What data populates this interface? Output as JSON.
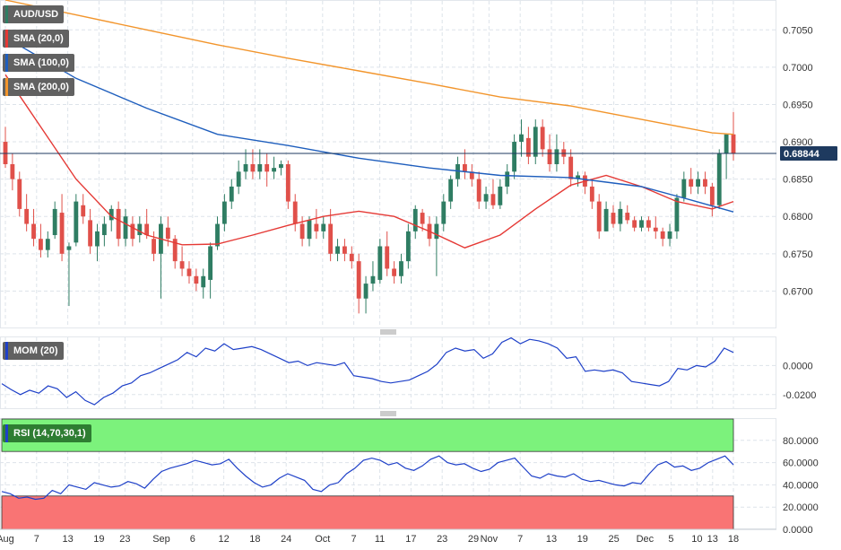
{
  "chart_data": {
    "type": "candlestick",
    "symbol": "AUD/USD",
    "x_tick_labels": [
      "Aug",
      "7",
      "13",
      "19",
      "23",
      "Sep",
      "6",
      "12",
      "18",
      "24",
      "Oct",
      "7",
      "11",
      "17",
      "23",
      "29",
      "Nov",
      "7",
      "13",
      "19",
      "25",
      "Dec",
      "5",
      "10",
      "13",
      "18"
    ],
    "price_axis": {
      "ylim": [
        0.665,
        0.709
      ],
      "ticks": [
        "0.7050",
        "0.7000",
        "0.6950",
        "0.6900",
        "0.6850",
        "0.6800",
        "0.6750",
        "0.6700"
      ]
    },
    "last_price": "0.68844",
    "candles": [
      [
        0.69,
        0.692,
        0.6865,
        0.687
      ],
      [
        0.687,
        0.6885,
        0.6835,
        0.685
      ],
      [
        0.685,
        0.686,
        0.68,
        0.681
      ],
      [
        0.681,
        0.683,
        0.678,
        0.679
      ],
      [
        0.679,
        0.681,
        0.676,
        0.677
      ],
      [
        0.677,
        0.679,
        0.6745,
        0.6755
      ],
      [
        0.6755,
        0.678,
        0.6745,
        0.677
      ],
      [
        0.6775,
        0.682,
        0.677,
        0.681
      ],
      [
        0.6805,
        0.683,
        0.674,
        0.675
      ],
      [
        0.6755,
        0.6765,
        0.668,
        0.676
      ],
      [
        0.6765,
        0.683,
        0.676,
        0.682
      ],
      [
        0.6815,
        0.683,
        0.679,
        0.68
      ],
      [
        0.6795,
        0.681,
        0.675,
        0.676
      ],
      [
        0.676,
        0.679,
        0.674,
        0.678
      ],
      [
        0.6775,
        0.68,
        0.676,
        0.679
      ],
      [
        0.6795,
        0.6815,
        0.678,
        0.681
      ],
      [
        0.681,
        0.682,
        0.676,
        0.677
      ],
      [
        0.677,
        0.681,
        0.676,
        0.68
      ],
      [
        0.679,
        0.68,
        0.676,
        0.677
      ],
      [
        0.6775,
        0.68,
        0.6765,
        0.679
      ],
      [
        0.679,
        0.681,
        0.677,
        0.6775
      ],
      [
        0.677,
        0.678,
        0.674,
        0.675
      ],
      [
        0.675,
        0.68,
        0.669,
        0.679
      ],
      [
        0.6785,
        0.68,
        0.676,
        0.677
      ],
      [
        0.677,
        0.6775,
        0.673,
        0.674
      ],
      [
        0.674,
        0.676,
        0.672,
        0.673
      ],
      [
        0.673,
        0.674,
        0.671,
        0.672
      ],
      [
        0.672,
        0.673,
        0.67,
        0.671
      ],
      [
        0.6705,
        0.673,
        0.669,
        0.672
      ],
      [
        0.6715,
        0.6765,
        0.669,
        0.676
      ],
      [
        0.676,
        0.68,
        0.6755,
        0.679
      ],
      [
        0.679,
        0.683,
        0.678,
        0.682
      ],
      [
        0.682,
        0.685,
        0.681,
        0.684
      ],
      [
        0.684,
        0.6875,
        0.683,
        0.686
      ],
      [
        0.686,
        0.689,
        0.685,
        0.687
      ],
      [
        0.687,
        0.689,
        0.685,
        0.686
      ],
      [
        0.686,
        0.689,
        0.685,
        0.687
      ],
      [
        0.687,
        0.6885,
        0.684,
        0.686
      ],
      [
        0.686,
        0.688,
        0.685,
        0.6865
      ],
      [
        0.6865,
        0.6875,
        0.6855,
        0.687
      ],
      [
        0.687,
        0.6875,
        0.681,
        0.682
      ],
      [
        0.682,
        0.683,
        0.678,
        0.679
      ],
      [
        0.679,
        0.68,
        0.676,
        0.677
      ],
      [
        0.677,
        0.68,
        0.676,
        0.6795
      ],
      [
        0.679,
        0.681,
        0.677,
        0.678
      ],
      [
        0.678,
        0.68,
        0.677,
        0.679
      ],
      [
        0.679,
        0.681,
        0.674,
        0.675
      ],
      [
        0.675,
        0.677,
        0.674,
        0.676
      ],
      [
        0.676,
        0.677,
        0.674,
        0.675
      ],
      [
        0.675,
        0.676,
        0.673,
        0.674
      ],
      [
        0.674,
        0.675,
        0.667,
        0.669
      ],
      [
        0.669,
        0.672,
        0.667,
        0.671
      ],
      [
        0.671,
        0.674,
        0.67,
        0.672
      ],
      [
        0.6715,
        0.677,
        0.671,
        0.676
      ],
      [
        0.676,
        0.678,
        0.672,
        0.673
      ],
      [
        0.673,
        0.674,
        0.671,
        0.672
      ],
      [
        0.672,
        0.675,
        0.671,
        0.674
      ],
      [
        0.674,
        0.679,
        0.673,
        0.678
      ],
      [
        0.678,
        0.6815,
        0.677,
        0.681
      ],
      [
        0.6805,
        0.681,
        0.678,
        0.679
      ],
      [
        0.679,
        0.68,
        0.676,
        0.677
      ],
      [
        0.677,
        0.68,
        0.672,
        0.679
      ],
      [
        0.679,
        0.683,
        0.678,
        0.682
      ],
      [
        0.682,
        0.6855,
        0.681,
        0.685
      ],
      [
        0.685,
        0.688,
        0.684,
        0.687
      ],
      [
        0.687,
        0.689,
        0.685,
        0.686
      ],
      [
        0.686,
        0.687,
        0.684,
        0.685
      ],
      [
        0.685,
        0.686,
        0.681,
        0.682
      ],
      [
        0.682,
        0.684,
        0.681,
        0.683
      ],
      [
        0.683,
        0.685,
        0.681,
        0.6815
      ],
      [
        0.6815,
        0.685,
        0.681,
        0.684
      ],
      [
        0.684,
        0.687,
        0.683,
        0.686
      ],
      [
        0.686,
        0.691,
        0.685,
        0.69
      ],
      [
        0.69,
        0.693,
        0.688,
        0.691
      ],
      [
        0.6905,
        0.692,
        0.687,
        0.688
      ],
      [
        0.688,
        0.693,
        0.687,
        0.692
      ],
      [
        0.692,
        0.693,
        0.688,
        0.689
      ],
      [
        0.689,
        0.691,
        0.686,
        0.687
      ],
      [
        0.687,
        0.691,
        0.686,
        0.689
      ],
      [
        0.689,
        0.69,
        0.687,
        0.688
      ],
      [
        0.688,
        0.689,
        0.684,
        0.685
      ],
      [
        0.685,
        0.686,
        0.684,
        0.6855
      ],
      [
        0.6855,
        0.686,
        0.683,
        0.684
      ],
      [
        0.684,
        0.685,
        0.681,
        0.682
      ],
      [
        0.682,
        0.683,
        0.677,
        0.678
      ],
      [
        0.678,
        0.682,
        0.678,
        0.681
      ],
      [
        0.6805,
        0.6815,
        0.6785,
        0.679
      ],
      [
        0.679,
        0.682,
        0.678,
        0.681
      ],
      [
        0.6805,
        0.6815,
        0.679,
        0.6795
      ],
      [
        0.6795,
        0.68,
        0.678,
        0.6785
      ],
      [
        0.6785,
        0.68,
        0.678,
        0.6795
      ],
      [
        0.6795,
        0.68,
        0.678,
        0.6785
      ],
      [
        0.6785,
        0.68,
        0.677,
        0.678
      ],
      [
        0.678,
        0.6785,
        0.676,
        0.677
      ],
      [
        0.677,
        0.679,
        0.676,
        0.678
      ],
      [
        0.678,
        0.683,
        0.677,
        0.6825
      ],
      [
        0.6825,
        0.686,
        0.682,
        0.685
      ],
      [
        0.685,
        0.6865,
        0.683,
        0.684
      ],
      [
        0.684,
        0.686,
        0.683,
        0.685
      ],
      [
        0.685,
        0.686,
        0.683,
        0.684
      ],
      [
        0.684,
        0.6845,
        0.68,
        0.6815
      ],
      [
        0.6815,
        0.689,
        0.681,
        0.6885
      ],
      [
        0.6885,
        0.691,
        0.685,
        0.691
      ],
      [
        0.691,
        0.694,
        0.6875,
        0.6884
      ]
    ],
    "sma": [
      {
        "name": "SMA (20,0)",
        "color": "#e53935",
        "points": [
          [
            0,
            0.699
          ],
          [
            5,
            0.692
          ],
          [
            10,
            0.685
          ],
          [
            15,
            0.68
          ],
          [
            20,
            0.6775
          ],
          [
            25,
            0.6762
          ],
          [
            30,
            0.6763
          ],
          [
            35,
            0.6775
          ],
          [
            40,
            0.6788
          ],
          [
            45,
            0.68
          ],
          [
            50,
            0.6807
          ],
          [
            55,
            0.68
          ],
          [
            60,
            0.678
          ],
          [
            65,
            0.6758
          ],
          [
            70,
            0.6775
          ],
          [
            75,
            0.681
          ],
          [
            80,
            0.6842
          ],
          [
            85,
            0.6855
          ],
          [
            90,
            0.684
          ],
          [
            95,
            0.682
          ],
          [
            100,
            0.681
          ],
          [
            103,
            0.682
          ]
        ]
      },
      {
        "name": "SMA (100,0)",
        "color": "#1e5ebd",
        "points": [
          [
            0,
            0.704
          ],
          [
            10,
            0.6985
          ],
          [
            20,
            0.6945
          ],
          [
            30,
            0.691
          ],
          [
            40,
            0.6895
          ],
          [
            50,
            0.6878
          ],
          [
            60,
            0.6865
          ],
          [
            70,
            0.6855
          ],
          [
            80,
            0.6852
          ],
          [
            90,
            0.684
          ],
          [
            97,
            0.6822
          ],
          [
            103,
            0.6806
          ]
        ]
      },
      {
        "name": "SMA (200,0)",
        "color": "#f2952c",
        "points": [
          [
            0,
            0.709
          ],
          [
            10,
            0.707
          ],
          [
            20,
            0.705
          ],
          [
            30,
            0.703
          ],
          [
            40,
            0.7012
          ],
          [
            50,
            0.6995
          ],
          [
            60,
            0.6978
          ],
          [
            70,
            0.696
          ],
          [
            80,
            0.6948
          ],
          [
            90,
            0.693
          ],
          [
            100,
            0.6912
          ],
          [
            103,
            0.691
          ]
        ]
      }
    ],
    "mom": {
      "name": "MOM (20)",
      "color": "#1e40c8",
      "ylim": [
        -0.03,
        0.02
      ],
      "ticks": [
        "0.0000",
        "-0.0200"
      ],
      "values": [
        -0.0125,
        -0.0165,
        -0.02,
        -0.017,
        -0.019,
        -0.014,
        -0.016,
        -0.022,
        -0.018,
        -0.024,
        -0.027,
        -0.022,
        -0.019,
        -0.014,
        -0.012,
        -0.007,
        -0.005,
        -0.002,
        0.001,
        0.004,
        0.009,
        0.006,
        0.012,
        0.01,
        0.015,
        0.011,
        0.012,
        0.013,
        0.011,
        0.008,
        0.005,
        0.002,
        0.003,
        0.0,
        0.002,
        0.001,
        0.0,
        0.002,
        -0.007,
        -0.008,
        -0.009,
        -0.011,
        -0.012,
        -0.011,
        -0.01,
        -0.007,
        -0.004,
        0.001,
        0.009,
        0.012,
        0.01,
        0.011,
        0.005,
        0.008,
        0.016,
        0.019,
        0.015,
        0.018,
        0.017,
        0.015,
        0.012,
        0.005,
        0.006,
        -0.004,
        -0.003,
        -0.004,
        -0.003,
        -0.005,
        -0.011,
        -0.012,
        -0.013,
        -0.014,
        -0.011,
        -0.002,
        -0.003,
        0.0,
        -0.001,
        0.003,
        0.012,
        0.009
      ],
      "label_sample_note": ""
    },
    "rsi": {
      "name": "RSI (14,70,30,1)",
      "color": "#1e40c8",
      "ylim": [
        0,
        100
      ],
      "overbought": 70,
      "oversold": 30,
      "ticks": [
        "80.0000",
        "60.0000",
        "40.0000",
        "20.0000",
        "0.0000"
      ],
      "values": [
        34,
        32,
        28,
        29,
        27,
        28,
        35,
        32,
        40,
        38,
        36,
        42,
        40,
        38,
        39,
        43,
        41,
        37,
        45,
        52,
        55,
        57,
        59,
        62,
        60,
        58,
        59,
        63,
        55,
        48,
        42,
        38,
        40,
        46,
        50,
        47,
        44,
        36,
        34,
        40,
        42,
        50,
        55,
        62,
        64,
        62,
        58,
        60,
        55,
        53,
        57,
        63,
        66,
        60,
        58,
        59,
        55,
        52,
        54,
        60,
        62,
        64,
        56,
        48,
        46,
        50,
        48,
        47,
        50,
        45,
        43,
        44,
        42,
        40,
        39,
        42,
        41,
        50,
        58,
        61,
        56,
        57,
        53,
        55,
        60,
        63,
        66,
        58
      ]
    }
  },
  "legends": {
    "symbol": "AUD/USD",
    "sma20": "SMA (20,0)",
    "sma100": "SMA (100,0)",
    "sma200": "SMA (200,0)",
    "mom": "MOM (20)",
    "rsi": "RSI (14,70,30,1)"
  },
  "colors": {
    "bull": "#2f7d63",
    "bear": "#e0504a",
    "sma20": "#e53935",
    "sma100": "#1e5ebd",
    "sma200": "#f2952c",
    "indicator_line": "#1e40c8",
    "last_price_bg": "#1e3a5f",
    "rsi_overbought_fill": "#7cf27c",
    "rsi_oversold_fill": "#f97474",
    "grid": "#dde3ea"
  }
}
